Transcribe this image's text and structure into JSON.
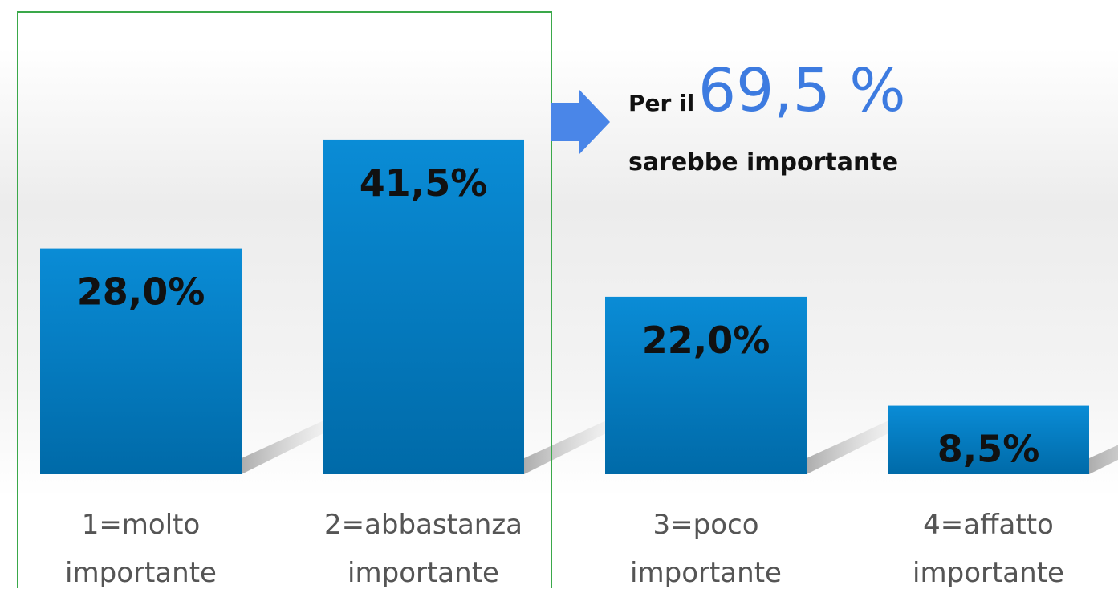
{
  "chart_data": {
    "type": "bar",
    "categories": [
      "1=molto importante",
      "2=abbastanza importante",
      "3=poco importante",
      "4=affatto importante"
    ],
    "values": [
      28.0,
      41.5,
      22.0,
      8.5
    ],
    "value_labels": [
      "28,0%",
      "41,5%",
      "22,0%",
      "8,5%"
    ],
    "color": "#0a85cc",
    "annotation": {
      "prefix": "Per il",
      "highlight": "69,5 %",
      "suffix": "sarebbe importante"
    }
  }
}
